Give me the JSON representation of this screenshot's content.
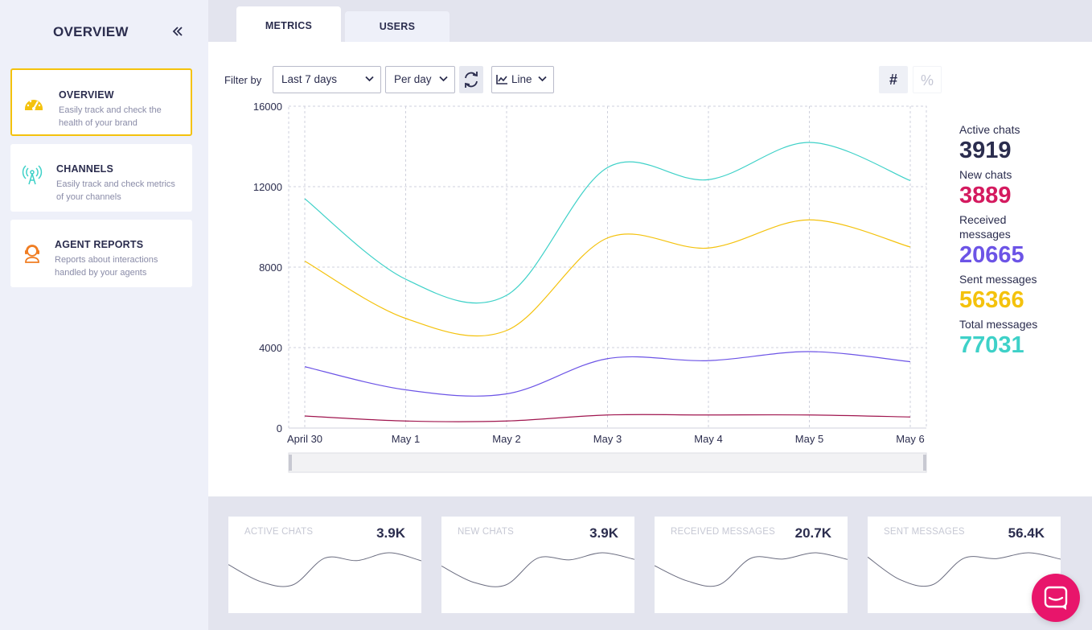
{
  "sidebar": {
    "title": "OVERVIEW",
    "items": [
      {
        "title": "OVERVIEW",
        "desc": "Easily track and check the health of your brand",
        "icon": "gauge-icon",
        "color": "#f4c20d",
        "active": true
      },
      {
        "title": "CHANNELS",
        "desc": "Easily track and check metrics of your channels",
        "icon": "antenna-icon",
        "color": "#3ed1c8",
        "active": false
      },
      {
        "title": "AGENT REPORTS",
        "desc": "Reports about interactions handled by your agents",
        "icon": "agent-icon",
        "color": "#f07d22",
        "active": false
      }
    ]
  },
  "tabs": [
    {
      "label": "METRICS",
      "active": true
    },
    {
      "label": "USERS",
      "active": false
    }
  ],
  "filters": {
    "label": "Filter by",
    "range": "Last 7 days",
    "granularity": "Per day",
    "chart_type": "Line",
    "toggle_count": "#",
    "toggle_percent": "%"
  },
  "stats": [
    {
      "label": "Active chats",
      "value": "3919",
      "color": "#2b2d4e"
    },
    {
      "label": "New chats",
      "value": "3889",
      "color": "#d41a5f"
    },
    {
      "label": "Received messages",
      "value": "20665",
      "color": "#6c54e6"
    },
    {
      "label": "Sent messages",
      "value": "56366",
      "color": "#f4c20d"
    },
    {
      "label": "Total messages",
      "value": "77031",
      "color": "#3ed1c8"
    }
  ],
  "chart_data": {
    "type": "line",
    "x": [
      "April 30",
      "May 1",
      "May 2",
      "May 3",
      "May 4",
      "May 5",
      "May 6"
    ],
    "yticks": [
      0,
      4000,
      8000,
      12000,
      16000
    ],
    "ylim": [
      0,
      16000
    ],
    "grid": true,
    "series": [
      {
        "color": "#3ed1c8",
        "values": [
          11400,
          7400,
          6600,
          12950,
          12350,
          14200,
          12300
        ]
      },
      {
        "color": "#f4c20d",
        "values": [
          8300,
          5450,
          4850,
          9450,
          8950,
          10350,
          9000
        ]
      },
      {
        "color": "#6c54e6",
        "values": [
          3050,
          1900,
          1700,
          3450,
          3350,
          3800,
          3300
        ]
      },
      {
        "color": "#a0164f",
        "values": [
          600,
          350,
          350,
          650,
          650,
          650,
          550
        ]
      }
    ]
  },
  "mini_cards": [
    {
      "label": "ACTIVE CHATS",
      "value": "3.9K",
      "values": [
        11400,
        7400,
        6600,
        12950,
        12350,
        14200,
        12300
      ]
    },
    {
      "label": "NEW CHATS",
      "value": "3.9K",
      "values": [
        11000,
        7300,
        6700,
        12800,
        12400,
        14000,
        12500
      ]
    },
    {
      "label": "RECEIVED MESSAGES",
      "value": "20.7K",
      "values": [
        11200,
        7600,
        6600,
        13000,
        12800,
        14300,
        12700
      ]
    },
    {
      "label": "SENT MESSAGES",
      "value": "56.4K",
      "values": [
        10500,
        6300,
        5300,
        10300,
        10200,
        11300,
        10100
      ]
    }
  ]
}
